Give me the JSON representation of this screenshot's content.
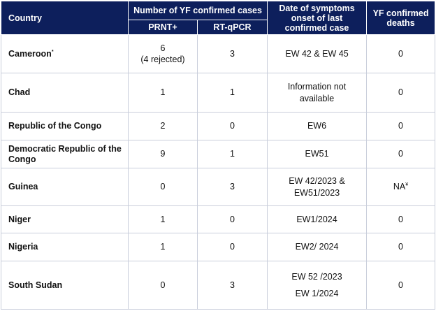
{
  "header": {
    "country": "Country",
    "cases_group": "Number of YF confirmed cases",
    "prnt": "PRNT+",
    "rtpcr": "RT-qPCR",
    "date": "Date of symptoms onset of last confirmed case",
    "deaths": "YF confirmed deaths"
  },
  "rows": [
    {
      "country": "Cameroon",
      "country_mark": "*",
      "prnt": "6",
      "prnt_note": "(4 rejected)",
      "rtpcr": "3",
      "date": "EW 42 & EW 45",
      "deaths": "0"
    },
    {
      "country": "Chad",
      "prnt": "1",
      "rtpcr": "1",
      "date": "Information not available",
      "deaths": "0"
    },
    {
      "country": "Republic of the Congo",
      "prnt": "2",
      "rtpcr": "0",
      "date": "EW6",
      "deaths": "0"
    },
    {
      "country": "Democratic Republic of the Congo",
      "prnt": "9",
      "rtpcr": "1",
      "date": "EW51",
      "deaths": "0"
    },
    {
      "country": "Guinea",
      "prnt": "0",
      "rtpcr": "3",
      "date": "EW 42/2023 & EW51/2023",
      "deaths": "NA",
      "deaths_mark": "¥"
    },
    {
      "country": "Niger",
      "prnt": "1",
      "rtpcr": "0",
      "date": "EW1/2024",
      "deaths": "0"
    },
    {
      "country": "Nigeria",
      "prnt": "1",
      "rtpcr": "0",
      "date": "EW2/ 2024",
      "deaths": "0"
    },
    {
      "country": "South Sudan",
      "prnt": "0",
      "rtpcr": "3",
      "date": "EW 52 /2023",
      "date_line2": "EW 1/2024",
      "deaths": "0"
    }
  ]
}
